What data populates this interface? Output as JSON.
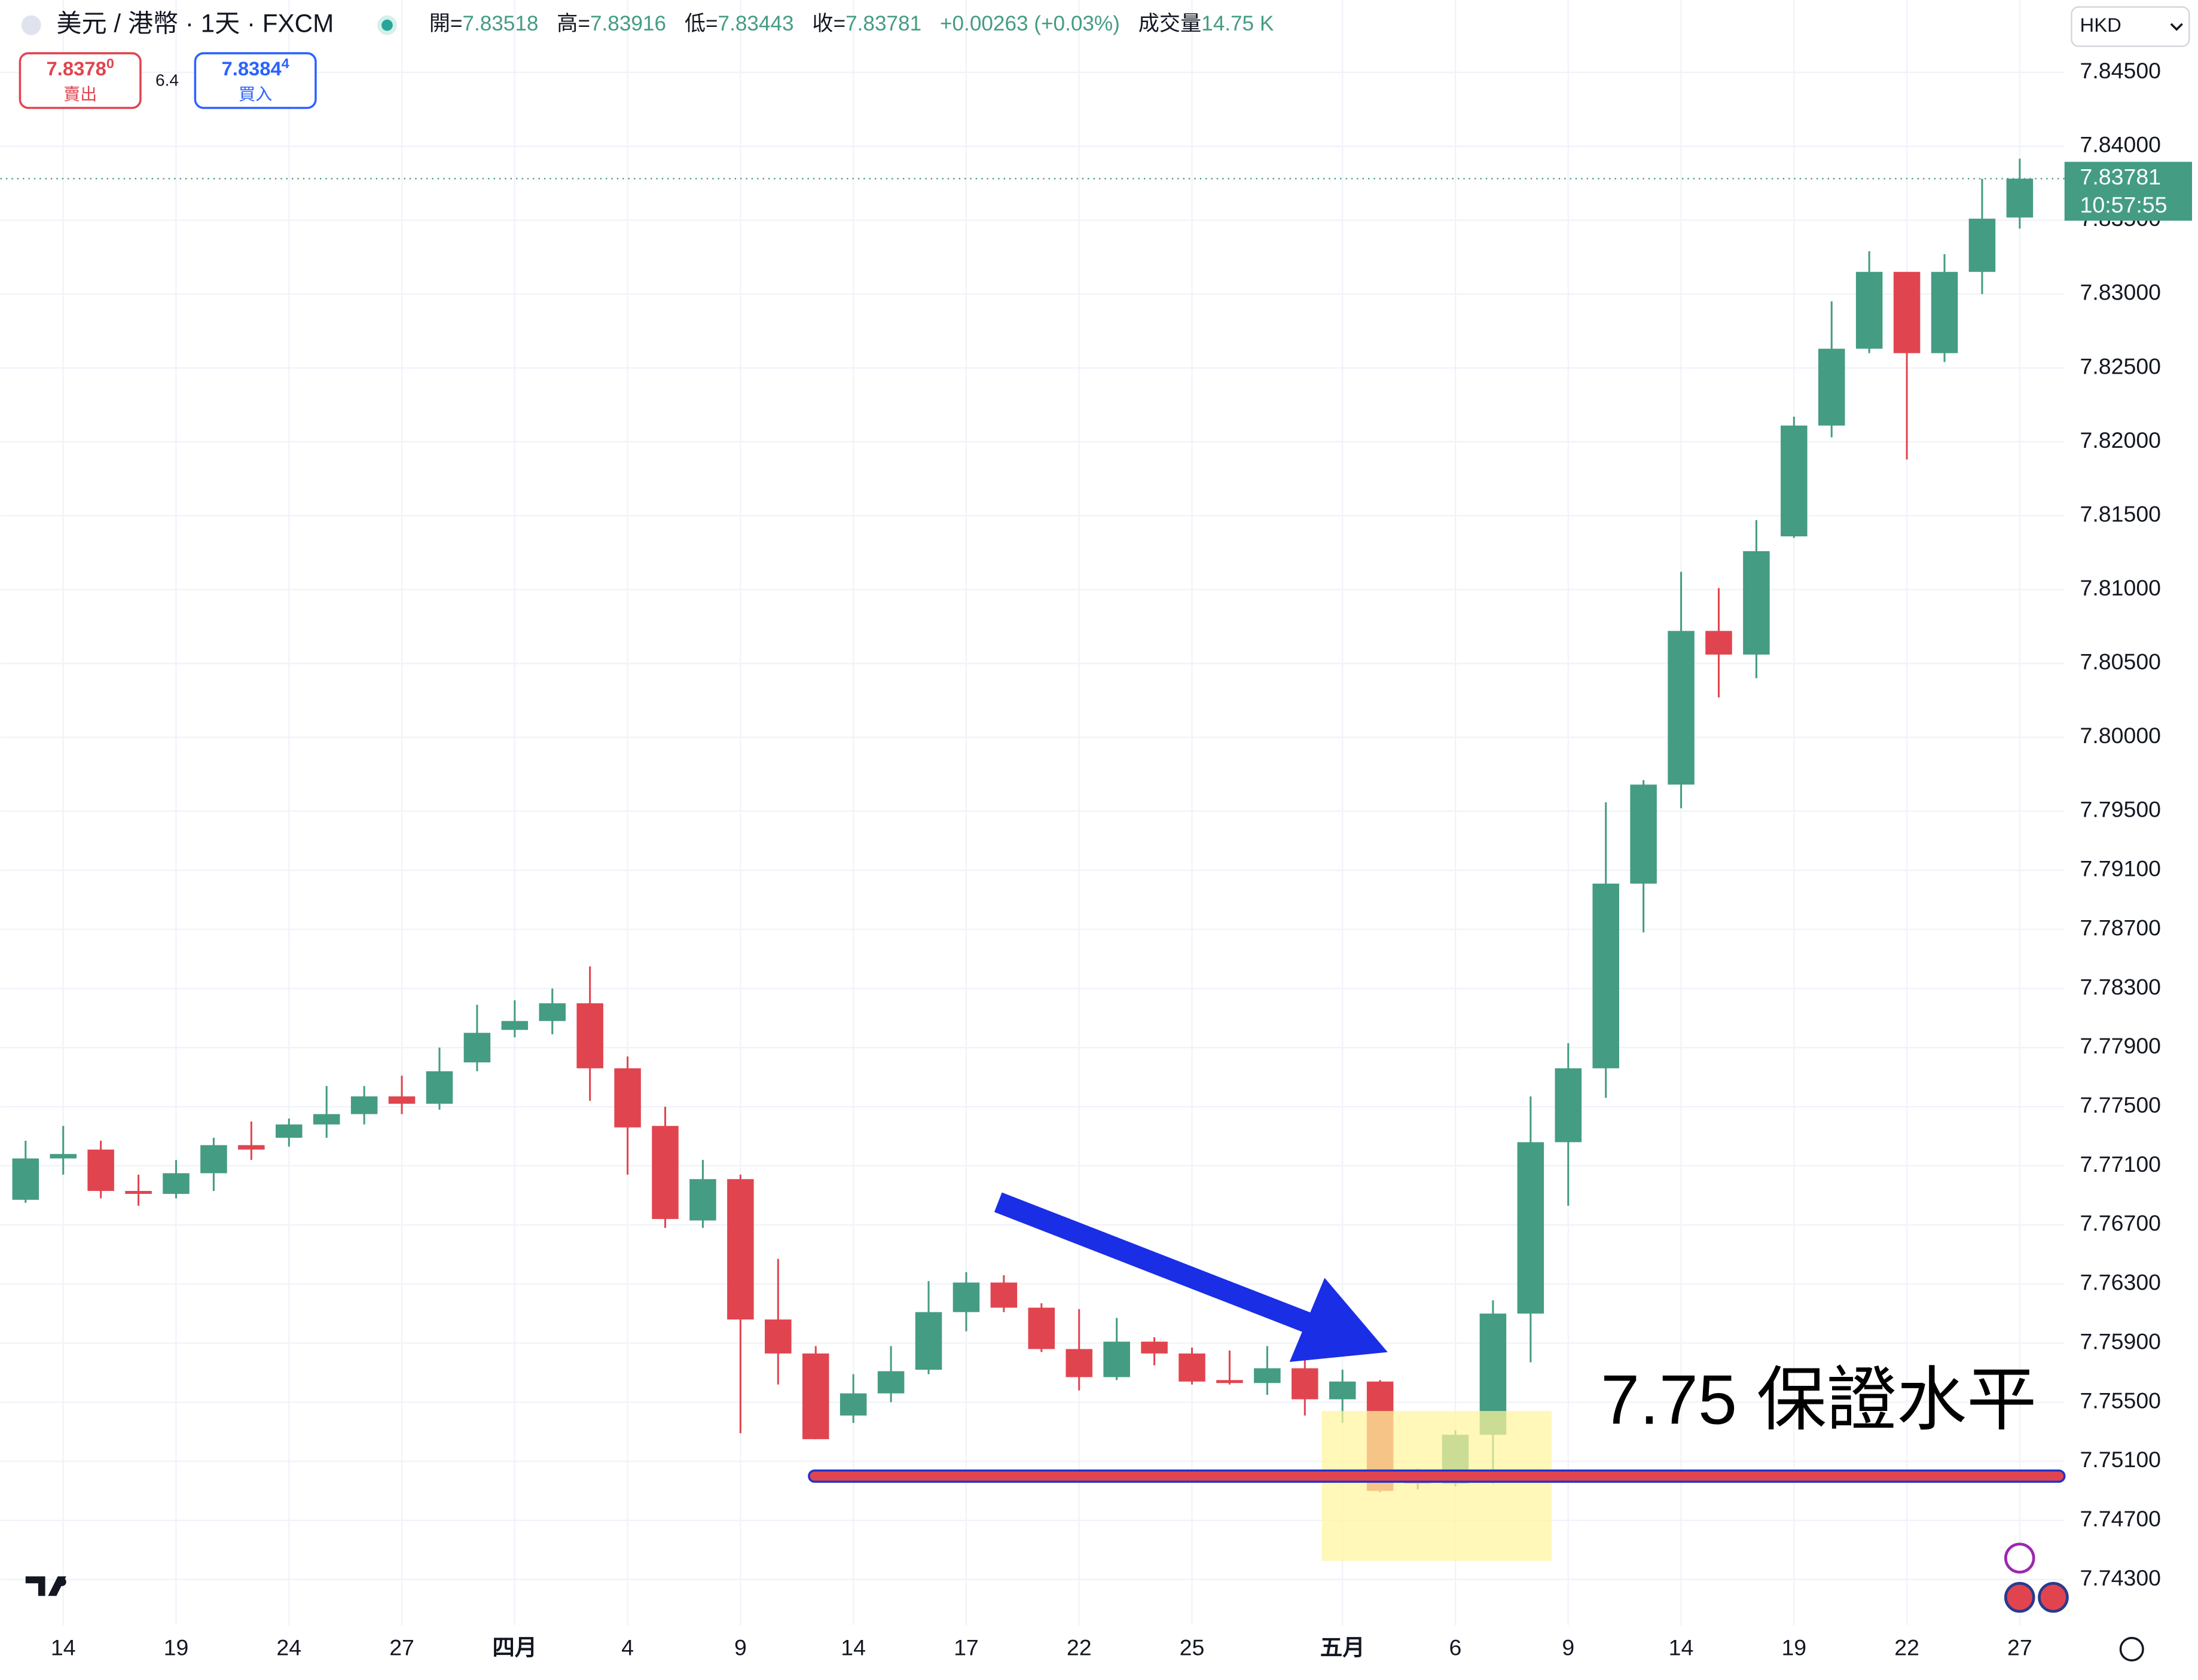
{
  "toolbar": {
    "symbol": "美元 / 港幣 · 1天 · FXCM",
    "ohlc": [
      {
        "label": "開=",
        "value": "7.83518"
      },
      {
        "label": "高=",
        "value": "7.83916"
      },
      {
        "label": "低=",
        "value": "7.83443"
      },
      {
        "label": "收=",
        "value": "7.83781"
      }
    ],
    "change": "+0.00263 (+0.03%)",
    "volume_label": "成交量",
    "volume": "14.75 K",
    "sell": {
      "price": "7.8378",
      "pip": "0",
      "label": "賣出"
    },
    "spread": "6.4",
    "buy": {
      "price": "7.8384",
      "pip": "4",
      "label": "買入"
    },
    "currency": "HKD"
  },
  "chart_data": {
    "type": "candlestick",
    "categories": [
      null,
      "14",
      null,
      null,
      "19",
      null,
      null,
      "24",
      null,
      null,
      "27",
      null,
      null,
      "四月",
      null,
      null,
      "4",
      null,
      null,
      "9",
      null,
      null,
      "14",
      null,
      null,
      "17",
      null,
      null,
      "22",
      null,
      null,
      "25",
      null,
      null,
      null,
      "五月",
      null,
      null,
      "6",
      null,
      null,
      "9",
      null,
      null,
      "14",
      null,
      null,
      "19",
      null,
      null,
      "22",
      null,
      null,
      "27"
    ],
    "open": [
      7.7687,
      7.7715,
      7.7721,
      7.7693,
      7.7691,
      7.7705,
      7.7724,
      7.7729,
      7.7738,
      7.7745,
      7.7757,
      7.7752,
      7.778,
      7.7802,
      7.7808,
      7.782,
      7.7776,
      7.7737,
      7.7673,
      7.7701,
      7.7606,
      7.7583,
      7.7541,
      7.7556,
      7.7572,
      7.7611,
      7.7631,
      7.7614,
      7.7586,
      7.7567,
      7.7591,
      7.7583,
      7.7565,
      7.7563,
      7.7573,
      7.7552,
      7.7564,
      7.7497,
      7.7495,
      7.7528,
      7.761,
      7.7726,
      7.7776,
      7.7901,
      7.7968,
      7.8072,
      7.8056,
      7.8136,
      7.8211,
      7.8263,
      7.8315,
      7.826,
      7.8315,
      7.83518
    ],
    "high": [
      7.7727,
      7.7737,
      7.7727,
      7.7704,
      7.7714,
      7.7729,
      7.774,
      7.7742,
      7.7764,
      7.7764,
      7.7771,
      7.779,
      7.7819,
      7.7822,
      7.783,
      7.7845,
      7.7784,
      7.775,
      7.7714,
      7.7704,
      7.7647,
      7.7588,
      7.7569,
      7.7588,
      7.7632,
      7.7638,
      7.7636,
      7.7617,
      7.7613,
      7.7607,
      7.7594,
      7.7587,
      7.7585,
      7.7588,
      7.7581,
      7.7572,
      7.7565,
      7.7505,
      7.7531,
      7.7619,
      7.7757,
      7.7793,
      7.7956,
      7.7971,
      7.8112,
      7.8101,
      7.8147,
      7.8217,
      7.8295,
      7.8329,
      7.8315,
      7.8327,
      7.8378,
      7.83916
    ],
    "low": [
      7.7685,
      7.7704,
      7.7688,
      7.7683,
      7.7688,
      7.7693,
      7.7714,
      7.7723,
      7.7729,
      7.7738,
      7.7745,
      7.7748,
      7.7774,
      7.7797,
      7.7799,
      7.7754,
      7.7704,
      7.7668,
      7.7668,
      7.7529,
      7.7562,
      7.7525,
      7.7536,
      7.755,
      7.7569,
      7.7598,
      7.7611,
      7.7584,
      7.7558,
      7.7565,
      7.7575,
      7.7562,
      7.7562,
      7.7555,
      7.7541,
      7.7536,
      7.7489,
      7.7491,
      7.7493,
      7.7495,
      7.7577,
      7.7683,
      7.7756,
      7.7868,
      7.7952,
      7.8027,
      7.804,
      7.8135,
      7.8203,
      7.826,
      7.8188,
      7.8254,
      7.83,
      7.83443
    ],
    "close": [
      7.7715,
      7.7718,
      7.7693,
      7.7691,
      7.7705,
      7.7724,
      7.7721,
      7.7738,
      7.7745,
      7.7757,
      7.7752,
      7.7774,
      7.78,
      7.7808,
      7.782,
      7.7776,
      7.7736,
      7.7674,
      7.7701,
      7.7606,
      7.7583,
      7.7525,
      7.7556,
      7.7571,
      7.7611,
      7.7631,
      7.7614,
      7.7586,
      7.7567,
      7.7591,
      7.7583,
      7.7564,
      7.7563,
      7.7573,
      7.7552,
      7.7564,
      7.749,
      7.7495,
      7.7528,
      7.761,
      7.7726,
      7.7776,
      7.7901,
      7.7968,
      7.8072,
      7.8056,
      7.8126,
      7.8211,
      7.8263,
      7.8315,
      7.826,
      7.8315,
      7.8351,
      7.83781
    ],
    "up_color": "#449c83",
    "down_color": "#e0454f",
    "ylim": [
      7.7399,
      7.8499
    ],
    "yticks": [
      {
        "value": 7.845,
        "label": "7.84500"
      },
      {
        "value": 7.84,
        "label": "7.84000"
      },
      {
        "value": 7.835,
        "label": "7.83500"
      },
      {
        "value": 7.83,
        "label": "7.83000"
      },
      {
        "value": 7.825,
        "label": "7.82500"
      },
      {
        "value": 7.82,
        "label": "7.82000"
      },
      {
        "value": 7.815,
        "label": "7.81500"
      },
      {
        "value": 7.81,
        "label": "7.81000"
      },
      {
        "value": 7.805,
        "label": "7.80500"
      },
      {
        "value": 7.8,
        "label": "7.80000"
      },
      {
        "value": 7.795,
        "label": "7.79500"
      },
      {
        "value": 7.791,
        "label": "7.79100"
      },
      {
        "value": 7.787,
        "label": "7.78700"
      },
      {
        "value": 7.783,
        "label": "7.78300"
      },
      {
        "value": 7.779,
        "label": "7.77900"
      },
      {
        "value": 7.775,
        "label": "7.77500"
      },
      {
        "value": 7.771,
        "label": "7.77100"
      },
      {
        "value": 7.767,
        "label": "7.76700"
      },
      {
        "value": 7.763,
        "label": "7.76300"
      },
      {
        "value": 7.759,
        "label": "7.75900"
      },
      {
        "value": 7.755,
        "label": "7.75500"
      },
      {
        "value": 7.751,
        "label": "7.75100"
      },
      {
        "value": 7.747,
        "label": "7.74700"
      },
      {
        "value": 7.743,
        "label": "7.74300"
      }
    ],
    "grid": true,
    "countdown": "10:57:55",
    "annotation": {
      "value": 7.75,
      "label": "7.75 保證水平"
    }
  }
}
